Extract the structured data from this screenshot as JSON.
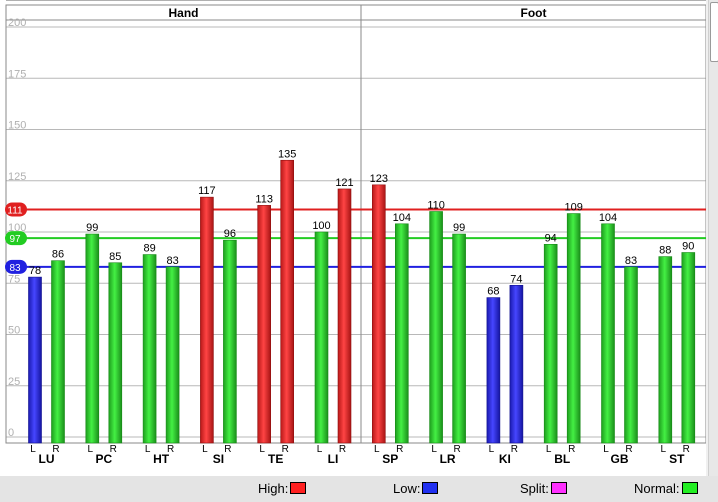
{
  "chart_data": {
    "type": "bar",
    "groups": [
      "Hand",
      "Foot"
    ],
    "ylim": [
      0,
      200
    ],
    "y_ticks": [
      0,
      25,
      50,
      75,
      100,
      125,
      150,
      175,
      200
    ],
    "meridians": [
      {
        "name": "LU",
        "group": "Hand",
        "L": 78,
        "R": 86
      },
      {
        "name": "PC",
        "group": "Hand",
        "L": 99,
        "R": 85
      },
      {
        "name": "HT",
        "group": "Hand",
        "L": 89,
        "R": 83
      },
      {
        "name": "SI",
        "group": "Hand",
        "L": 117,
        "R": 96
      },
      {
        "name": "TE",
        "group": "Hand",
        "L": 113,
        "R": 135
      },
      {
        "name": "LI",
        "group": "Hand",
        "L": 100,
        "R": 121
      },
      {
        "name": "SP",
        "group": "Foot",
        "L": 123,
        "R": 104
      },
      {
        "name": "LR",
        "group": "Foot",
        "L": 110,
        "R": 99
      },
      {
        "name": "KI",
        "group": "Foot",
        "L": 68,
        "R": 74
      },
      {
        "name": "BL",
        "group": "Foot",
        "L": 94,
        "R": 109
      },
      {
        "name": "GB",
        "group": "Foot",
        "L": 104,
        "R": 83
      },
      {
        "name": "ST",
        "group": "Foot",
        "L": 88,
        "R": 90
      }
    ],
    "side_labels": [
      "L",
      "R"
    ],
    "reference_lines": [
      {
        "value": 111,
        "color": "#e02020"
      },
      {
        "value": 97,
        "color": "#22cc22"
      },
      {
        "value": 83,
        "color": "#2020e0"
      }
    ],
    "bar_colors": {
      "high": "#ff2a2a",
      "low": "#3030f0",
      "normal": "#33dd33"
    },
    "grid": true
  },
  "legend": {
    "high_label": "High:",
    "low_label": "Low:",
    "split_label": "Split:",
    "normal_label": "Normal:",
    "high_color": "#ff2020",
    "low_color": "#2030f0",
    "split_color": "#ff30ff",
    "normal_color": "#22ee22"
  }
}
